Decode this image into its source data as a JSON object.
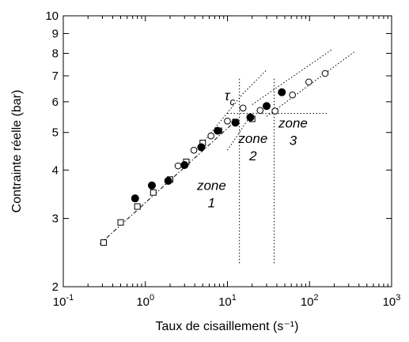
{
  "chart_data": {
    "type": "scatter",
    "xlabel": "Taux de cisaillement (s⁻¹)",
    "ylabel": "Contrainte réelle (bar)",
    "x_scale": "log",
    "y_scale": "log",
    "xlim": [
      0.1,
      1000
    ],
    "ylim": [
      2,
      10
    ],
    "x_ticks": [
      {
        "value": 0.1,
        "base": "10",
        "exp": "-1"
      },
      {
        "value": 1,
        "base": "10",
        "exp": "0"
      },
      {
        "value": 10,
        "base": "10",
        "exp": "1"
      },
      {
        "value": 100,
        "base": "10",
        "exp": "2"
      },
      {
        "value": 1000,
        "base": "10",
        "exp": "3"
      }
    ],
    "y_ticks": [
      {
        "value": 2,
        "label": "2"
      },
      {
        "value": 3,
        "label": "3"
      },
      {
        "value": 4,
        "label": "4"
      },
      {
        "value": 5,
        "label": "5"
      },
      {
        "value": 6,
        "label": "6"
      },
      {
        "value": 7,
        "label": "7"
      },
      {
        "value": 8,
        "label": "8"
      },
      {
        "value": 9,
        "label": "9"
      },
      {
        "value": 10,
        "label": "10"
      }
    ],
    "grid": false,
    "series": [
      {
        "marker": "open-square",
        "x": [
          0.31,
          0.5,
          0.8,
          1.25,
          2.0,
          3.15,
          5.0,
          7.9,
          12.5,
          20
        ],
        "y": [
          2.6,
          2.93,
          3.22,
          3.5,
          3.78,
          4.2,
          4.7,
          5.05,
          5.32,
          5.42
        ]
      },
      {
        "marker": "filled-circle",
        "x": [
          0.75,
          1.2,
          1.9,
          3.0,
          4.8,
          7.6,
          12.5,
          19,
          30,
          46
        ],
        "y": [
          3.38,
          3.65,
          3.75,
          4.12,
          4.58,
          5.05,
          5.3,
          5.47,
          5.85,
          6.35
        ]
      },
      {
        "marker": "open-circle",
        "x": [
          2.5,
          3.9,
          6.3,
          10,
          15.5,
          25,
          38,
          62,
          98,
          155
        ],
        "y": [
          4.1,
          4.5,
          4.9,
          5.35,
          5.78,
          5.7,
          5.68,
          6.25,
          6.75,
          7.1
        ]
      }
    ],
    "fit_lines": [
      {
        "style": "dotdash",
        "x": [
          0.28,
          11
        ],
        "y": [
          2.58,
          5.22
        ]
      },
      {
        "style": "dotted",
        "x": [
          5,
          15.5,
          30
        ],
        "y": [
          4.7,
          6.3,
          7.25
        ]
      },
      {
        "style": "dotted",
        "x": [
          10,
          20
        ],
        "y": [
          4.5,
          5.6
        ]
      },
      {
        "style": "dotted",
        "x": [
          20,
          190
        ],
        "y": [
          5.9,
          8.2
        ]
      },
      {
        "style": "dotted",
        "x": [
          30,
          360
        ],
        "y": [
          5.5,
          8.1
        ]
      }
    ],
    "reference_lines": {
      "vertical_x": [
        14,
        37
      ],
      "horizontal": {
        "y": 5.6,
        "x_from": 10,
        "x_to": 170
      },
      "v_y_range": [
        2.3,
        6.9
      ]
    },
    "annotations": {
      "tau": {
        "base": "τ",
        "sub": "c",
        "x": 9.2,
        "y": 6.05
      },
      "zones": [
        {
          "line1": "zone",
          "line2": "1",
          "x": 6.4,
          "y": 3.55
        },
        {
          "line1": "zone",
          "line2": "2",
          "x": 20.5,
          "y": 4.7
        },
        {
          "line1": "zone",
          "line2": "3",
          "x": 63,
          "y": 5.15
        }
      ]
    }
  }
}
